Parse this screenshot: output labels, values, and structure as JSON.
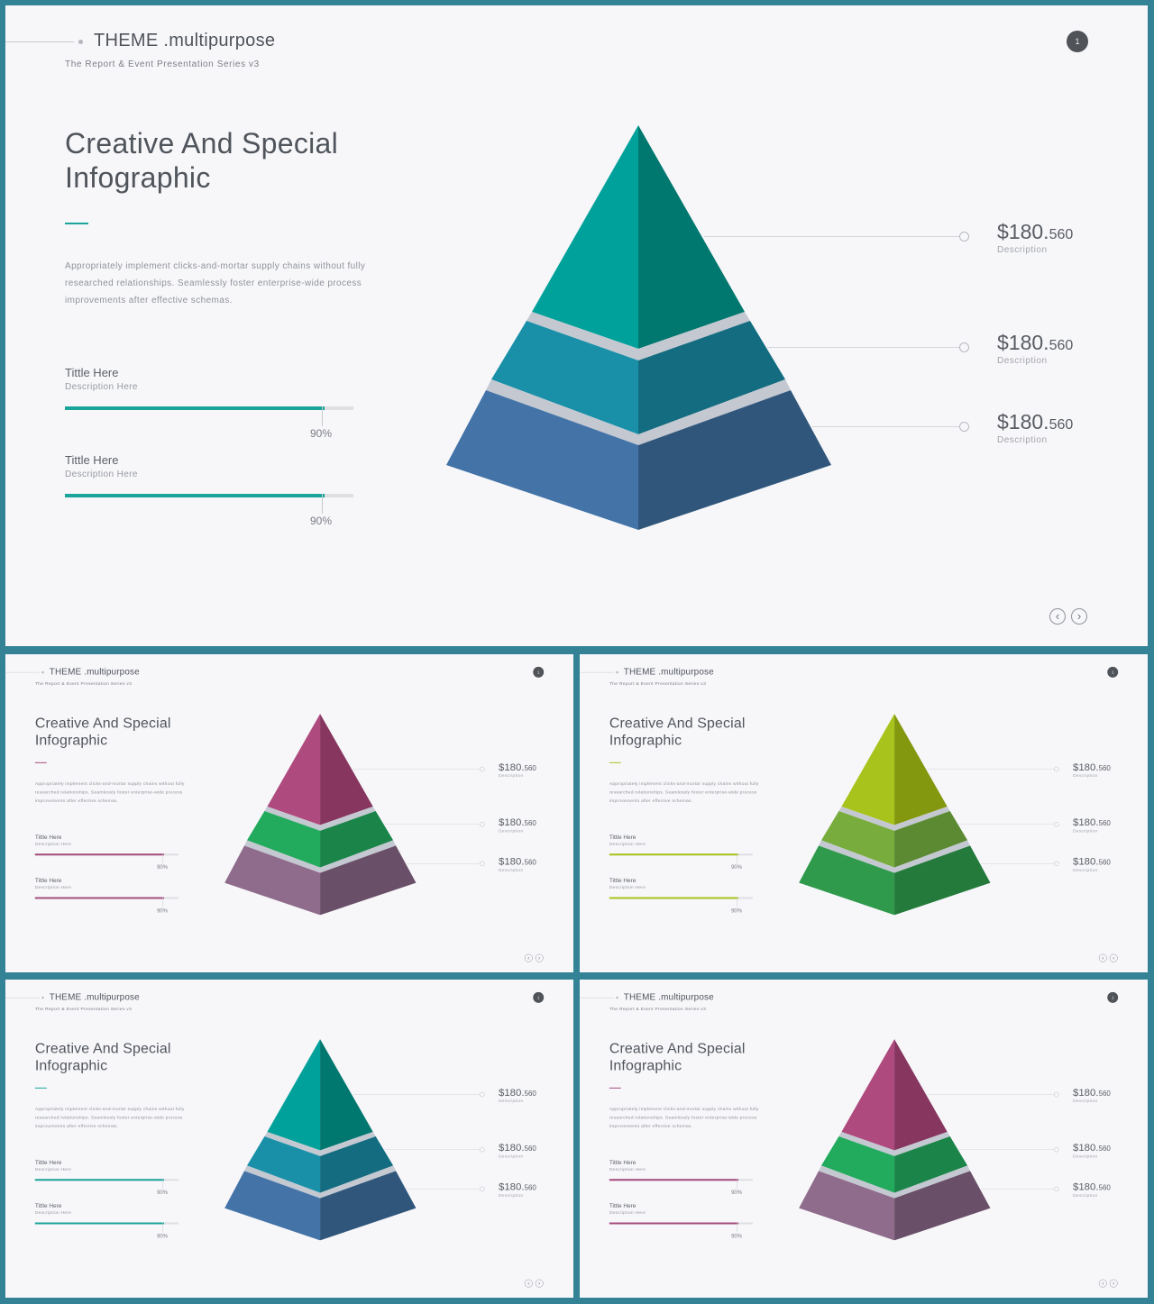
{
  "slide": {
    "brand": "THEME .multipurpose",
    "subbrand": "The Report & Event Presentation Series v3",
    "page_number": "1",
    "title_line1": "Creative And Special",
    "title_line2": "Infographic",
    "body": "Appropriately implement clicks-and-mortar supply chains without fully researched relationships. Seamlessly foster enterprise-wide process improvements after effective schemas.",
    "items": [
      {
        "title": "Tittle Here",
        "desc": "Description Here",
        "percent_label": "90%",
        "percent_value": 90
      },
      {
        "title": "Tittle Here",
        "desc": "Description Here",
        "percent_label": "90%",
        "percent_value": 90
      }
    ],
    "prices": [
      {
        "main": "$180.",
        "cents": "560",
        "desc": "Description"
      },
      {
        "main": "$180.",
        "cents": "560",
        "desc": "Description"
      },
      {
        "main": "$180.",
        "cents": "560",
        "desc": "Description"
      }
    ],
    "nav": {
      "prev_icon": "chevron-left-icon",
      "next_icon": "chevron-right-icon"
    }
  },
  "variants": [
    {
      "id": "teal-blue",
      "accent": "#1aa49a",
      "tiers": [
        {
          "left": "#00a19a",
          "right": "#00776f"
        },
        {
          "left": "#1990a8",
          "right": "#136c80"
        },
        {
          "left": "#4373a7",
          "right": "#30577b"
        }
      ]
    },
    {
      "id": "magenta-green-mauve",
      "accent": "#a54b7c",
      "tiers": [
        {
          "left": "#ae4a7d",
          "right": "#873660"
        },
        {
          "left": "#22aa5d",
          "right": "#1b8549"
        },
        {
          "left": "#8f6b8c",
          "right": "#6a4f68"
        }
      ]
    },
    {
      "id": "lime-green",
      "accent": "#a8c21b",
      "tiers": [
        {
          "left": "#a8c31b",
          "right": "#83980f"
        },
        {
          "left": "#78ac3c",
          "right": "#5b8a33"
        },
        {
          "left": "#2f9a4b",
          "right": "#247a3b"
        }
      ]
    },
    {
      "id": "teal-blue-2",
      "accent": "#1aa49a",
      "tiers": [
        {
          "left": "#00a19a",
          "right": "#00776f"
        },
        {
          "left": "#1990a8",
          "right": "#136c80"
        },
        {
          "left": "#4373a7",
          "right": "#30577b"
        }
      ]
    },
    {
      "id": "magenta-green-mauve-2",
      "accent": "#a54b7c",
      "tiers": [
        {
          "left": "#ae4a7d",
          "right": "#873660"
        },
        {
          "left": "#22aa5d",
          "right": "#1b8549"
        },
        {
          "left": "#8f6b8c",
          "right": "#6a4f68"
        }
      ]
    }
  ]
}
